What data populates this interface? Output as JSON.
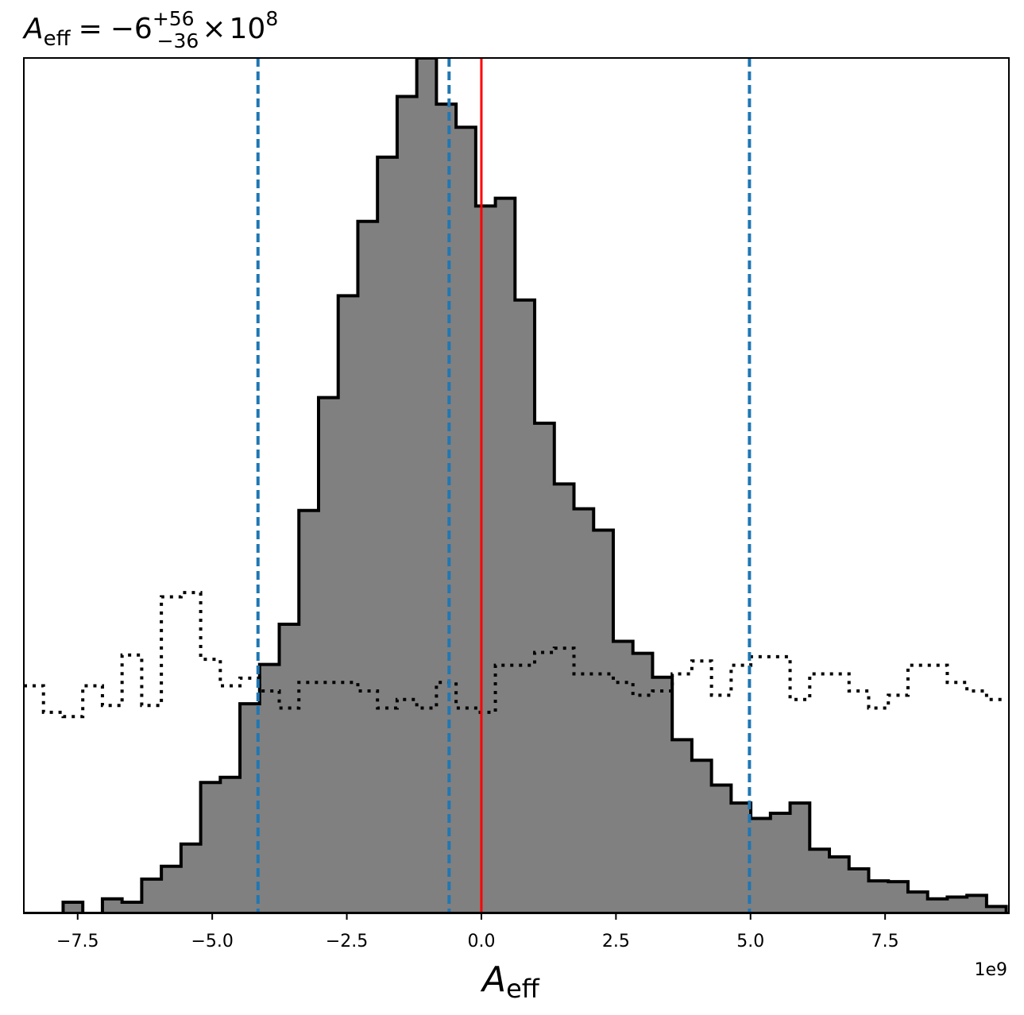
{
  "chart_data": {
    "type": "histogram",
    "title": {
      "symbol": "A",
      "subscript": "eff",
      "equals": "=",
      "value": "−6",
      "sup": "+56",
      "sub": "−36",
      "times": "×",
      "base": "10",
      "exponent": "8"
    },
    "xlabel": {
      "symbol": "A",
      "subscript": "eff"
    },
    "x_offset_text": "1e9",
    "xlim": [
      -8.5,
      9.8
    ],
    "ylim": [
      0,
      100
    ],
    "x_scale": 1000000000.0,
    "xticks": [
      -7.5,
      -5.0,
      -2.5,
      0.0,
      2.5,
      5.0,
      7.5
    ],
    "xtick_labels": [
      "−7.5",
      "−5.0",
      "−2.5",
      "0.0",
      "2.5",
      "5.0",
      "7.5"
    ],
    "y_axis_visible": false,
    "bin_start": -8.5,
    "bin_width": 0.365,
    "series": [
      {
        "style": "filled-step",
        "fill": "#808080",
        "edge": "#000000",
        "values": [
          0,
          0,
          1.3,
          0,
          1.7,
          1.3,
          4,
          5.5,
          8.1,
          15.3,
          15.9,
          24.5,
          29.1,
          33.8,
          47.1,
          60.3,
          72.2,
          80.9,
          88.4,
          95.5,
          100,
          94.6,
          91.9,
          82.7,
          83.6,
          71.7,
          57.3,
          50.2,
          47.3,
          44.8,
          31.8,
          30.4,
          27.6,
          20.3,
          17.9,
          15.0,
          12.9,
          11.1,
          11.7,
          12.9,
          7.5,
          6.6,
          5.2,
          3.8,
          3.7,
          2.5,
          1.7,
          1.9,
          2.1,
          0.8
        ]
      },
      {
        "style": "dotted-step",
        "edge": "#000000",
        "values": [
          26.6,
          23.5,
          23.0,
          26.6,
          24.3,
          30.2,
          24.3,
          37.0,
          37.5,
          29.7,
          26.6,
          27.5,
          26.0,
          24.0,
          27.0,
          27.0,
          27.0,
          26.0,
          24.0,
          25.0,
          24.0,
          27.0,
          24.0,
          23.5,
          29.0,
          29.0,
          30.5,
          31.0,
          28.0,
          28.0,
          27.0,
          25.5,
          26.0,
          28.0,
          29.5,
          25.5,
          29.0,
          30.0,
          30.0,
          25.0,
          28.0,
          28.0,
          26.0,
          24.0,
          25.5,
          29.0,
          29.0,
          27.0,
          26.0,
          25.0
        ]
      }
    ],
    "vlines": [
      {
        "x": -4.15,
        "style": "dashed",
        "color": "#1f77b4"
      },
      {
        "x": -0.6,
        "style": "dashed",
        "color": "#1f77b4"
      },
      {
        "x": 0.0,
        "style": "solid",
        "color": "#ff0000"
      },
      {
        "x": 4.98,
        "style": "dashed",
        "color": "#1f77b4"
      }
    ]
  }
}
